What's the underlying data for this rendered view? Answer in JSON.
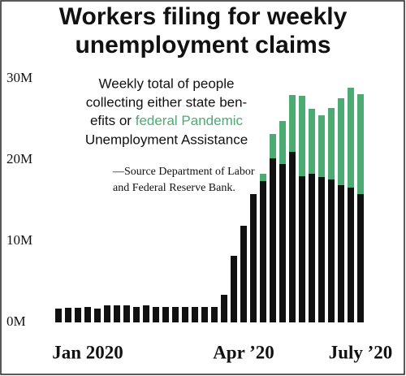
{
  "chart_data": {
    "type": "stacked_bar",
    "title": [
      "Workers filing for weekly",
      "unemployment claims"
    ],
    "annotation": [
      "Weekly total of people",
      "collecting either state ben-",
      "efits or",
      "federal Pandemic",
      "Unemployment Assistance"
    ],
    "annotation_highlight_color": "#4caa73",
    "source": [
      "—Source Department of Labor",
      "and Federal Reserve Bank."
    ],
    "categories": [
      null,
      null,
      null,
      "Jan 2020",
      null,
      null,
      null,
      null,
      null,
      null,
      null,
      null,
      null,
      null,
      null,
      null,
      null,
      null,
      null,
      "Apr ’20",
      null,
      null,
      null,
      null,
      null,
      null,
      null,
      null,
      null,
      null,
      null,
      "July ’20"
    ],
    "series": [
      {
        "color": "#111111",
        "values": [
          1.7,
          1.8,
          1.8,
          1.9,
          1.7,
          2.1,
          2.1,
          2.1,
          1.9,
          2.1,
          1.9,
          1.9,
          1.9,
          1.9,
          1.9,
          1.9,
          1.9,
          3.4,
          8.2,
          11.9,
          15.8,
          17.4,
          20.2,
          19.5,
          21.0,
          18.0,
          18.3,
          17.9,
          17.6,
          16.9,
          16.6,
          15.8
        ]
      },
      {
        "color": "#4caa73",
        "values": [
          0,
          0,
          0,
          0,
          0,
          0,
          0,
          0,
          0,
          0,
          0,
          0,
          0,
          0,
          0,
          0,
          0,
          0,
          0,
          0,
          0,
          0.9,
          3.0,
          5.3,
          7.0,
          9.9,
          8.0,
          7.6,
          8.8,
          10.7,
          12.3,
          12.3
        ]
      }
    ],
    "ylim": [
      0,
      30
    ],
    "yticks": [
      {
        "value": 0,
        "label": "0M"
      },
      {
        "value": 10,
        "label": "10M"
      },
      {
        "value": 20,
        "label": "20M"
      },
      {
        "value": 30,
        "label": "30M"
      }
    ],
    "grid": false
  }
}
